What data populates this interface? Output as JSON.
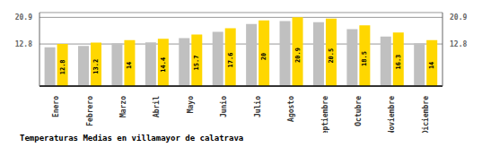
{
  "chart_data": {
    "type": "bar",
    "title": "Temperaturas Medias en villamayor de calatrava",
    "categories": [
      "Enero",
      "Febrero",
      "Marzo",
      "Abril",
      "Mayo",
      "Junio",
      "Julio",
      "Agosto",
      "Septiembre",
      "Octubre",
      "Noviembre",
      "Diciembre"
    ],
    "series": [
      {
        "color": "#C0C0C0",
        "values": [
          11.8,
          12.2,
          13.0,
          13.3,
          14.6,
          16.5,
          18.9,
          19.8,
          19.4,
          17.3,
          15.1,
          13.0
        ]
      },
      {
        "color": "#FFD700",
        "values": [
          12.8,
          13.2,
          14.0,
          14.4,
          15.7,
          17.6,
          20.0,
          20.9,
          20.5,
          18.5,
          16.3,
          14.0
        ],
        "data_labels": true
      }
    ],
    "ylim": [
      0,
      22.363
    ],
    "yticks": [
      12.8,
      20.9
    ],
    "y2lim": [
      0,
      22.363
    ],
    "y2ticks": [
      12.8,
      20.9
    ],
    "grid": true
  }
}
